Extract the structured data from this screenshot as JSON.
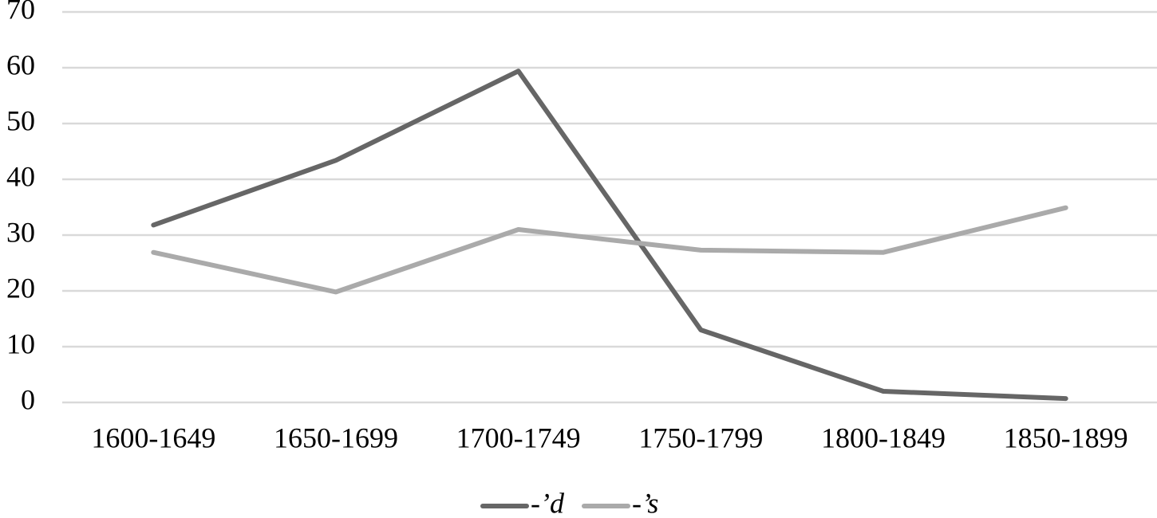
{
  "chart_data": {
    "type": "line",
    "categories": [
      "1600-1649",
      "1650-1699",
      "1700-1749",
      "1750-1799",
      "1800-1849",
      "1850-1899"
    ],
    "series": [
      {
        "name": "-’d",
        "color": "#666666",
        "values": [
          31.8,
          43.4,
          59.4,
          13,
          2,
          0.7
        ]
      },
      {
        "name": "-’s",
        "color": "#aaaaaa",
        "values": [
          26.9,
          19.8,
          31,
          27.3,
          26.9,
          34.9
        ]
      }
    ],
    "ylim": [
      0,
      70
    ],
    "yticks": [
      0,
      10,
      20,
      30,
      40,
      50,
      60,
      70
    ],
    "grid": true,
    "legend": "bottom"
  }
}
